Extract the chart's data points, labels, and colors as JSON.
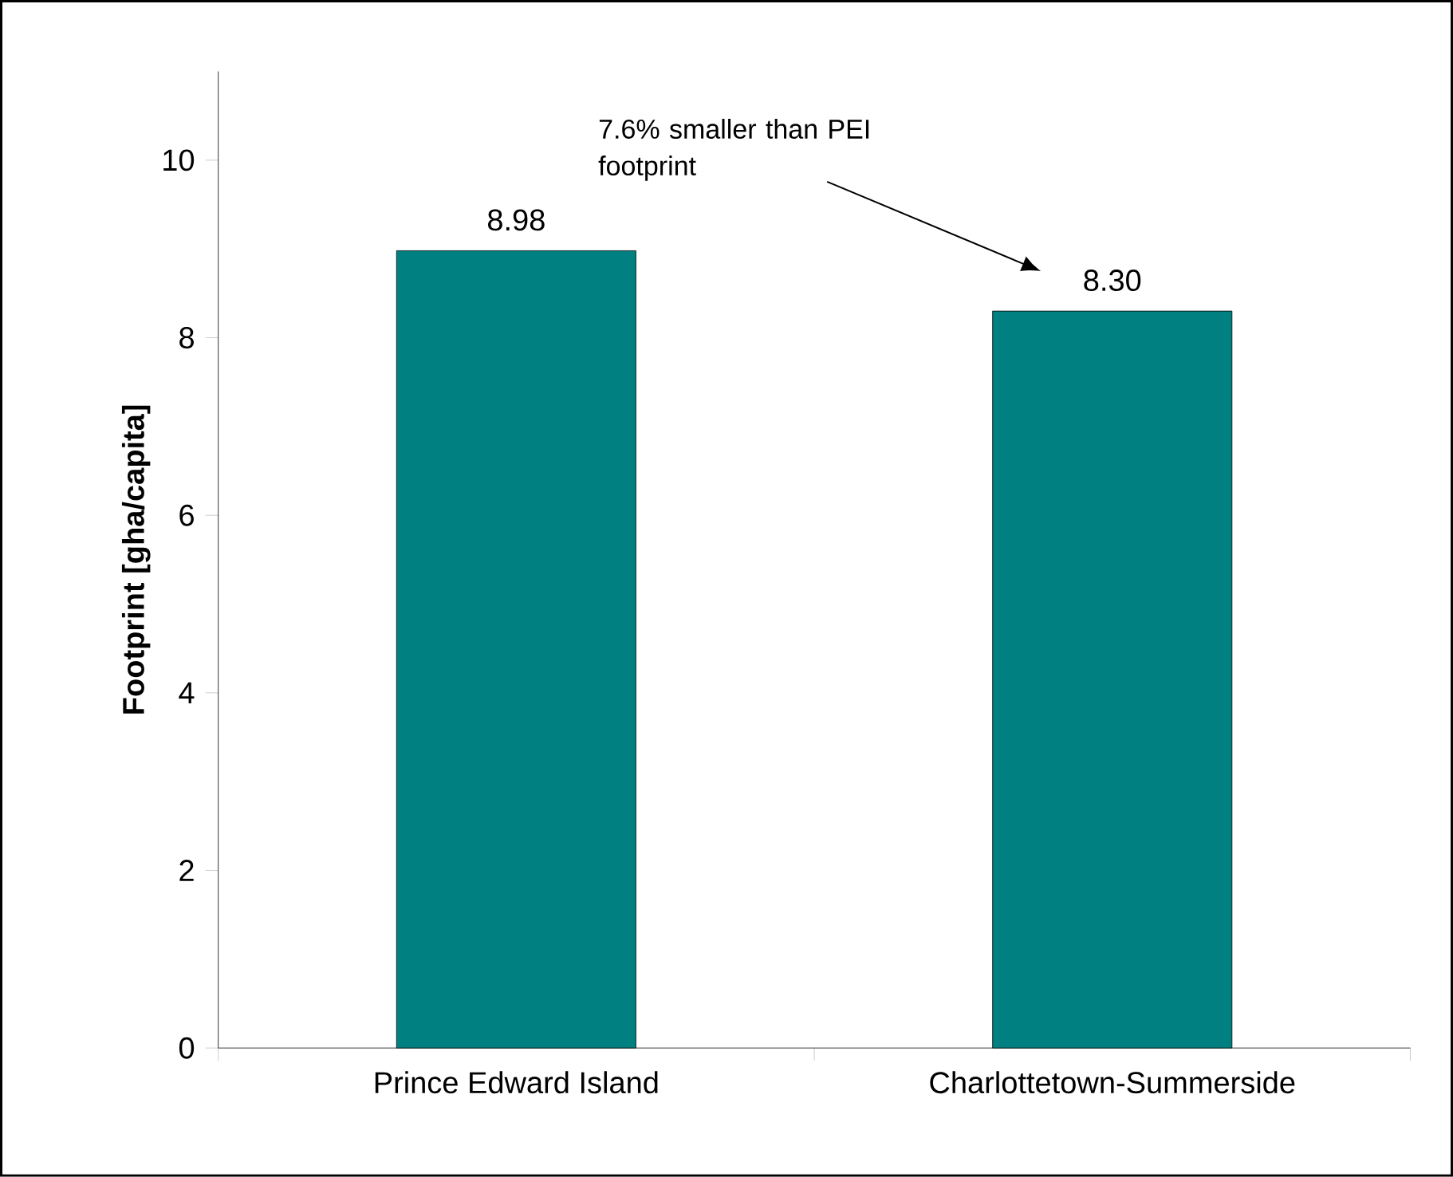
{
  "chart_data": {
    "type": "bar",
    "ylabel": "Footprint [gha/capita]",
    "categories": [
      "Prince Edward Island",
      "Charlottetown-Summerside"
    ],
    "values": [
      8.98,
      8.3
    ],
    "value_labels": [
      "8.98",
      "8.30"
    ],
    "color": "#008080",
    "ylim": [
      0,
      11
    ],
    "yticks": [
      0,
      2,
      4,
      6,
      8,
      10
    ],
    "grid": false,
    "annotations": [
      "7.6% smaller than PEI footprint"
    ]
  }
}
